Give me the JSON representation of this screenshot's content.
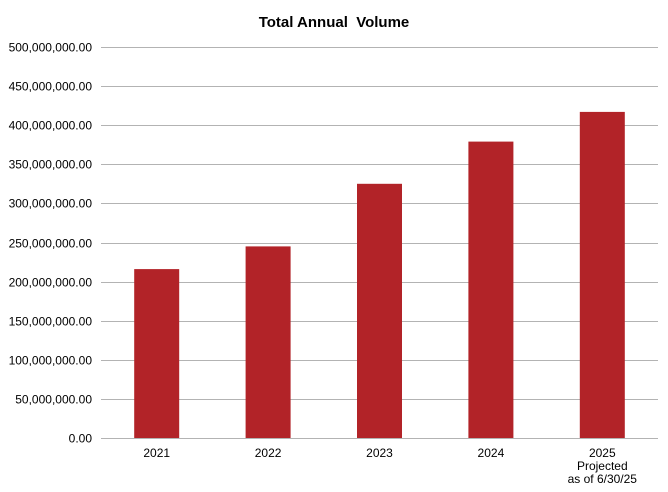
{
  "chart_data": {
    "type": "bar",
    "title": "Total Annual  Volume",
    "categories": [
      [
        "2021"
      ],
      [
        "2022"
      ],
      [
        "2023"
      ],
      [
        "2024"
      ],
      [
        "2025",
        "Projected",
        "as of 6/30/25"
      ]
    ],
    "values": [
      216000000,
      245000000,
      325000000,
      379000000,
      417000000
    ],
    "ylim": [
      0,
      500000000
    ],
    "yticks": [
      "0.00",
      "50,000,000.00",
      "100,000,000.00",
      "150,000,000.00",
      "200,000,000.00",
      "250,000,000.00",
      "300,000,000.00",
      "350,000,000.00",
      "400,000,000.00",
      "450,000,000.00",
      "500,000,000.00"
    ],
    "grid": true,
    "legend": "none",
    "xlabel": "",
    "ylabel": "",
    "colors": {
      "bar": "#b22328",
      "grid": "#b3b3b3",
      "text": "#000000"
    }
  }
}
